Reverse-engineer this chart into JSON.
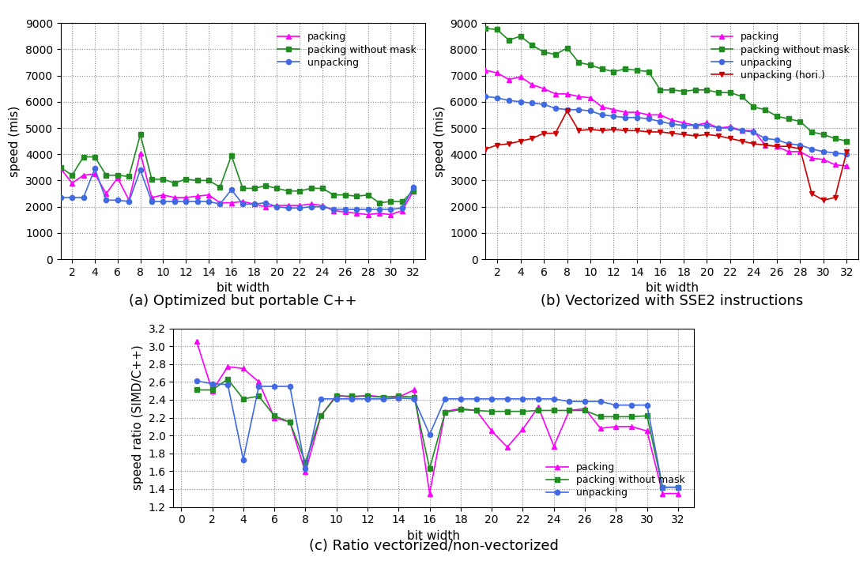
{
  "bit_widths": [
    1,
    2,
    3,
    4,
    5,
    6,
    7,
    8,
    9,
    10,
    11,
    12,
    13,
    14,
    15,
    16,
    17,
    18,
    19,
    20,
    21,
    22,
    23,
    24,
    25,
    26,
    27,
    28,
    29,
    30,
    31,
    32
  ],
  "ax1_packing": [
    3450,
    2900,
    3200,
    3250,
    2500,
    3100,
    2250,
    4050,
    2350,
    2450,
    2350,
    2350,
    2400,
    2450,
    2150,
    2150,
    2200,
    2100,
    2000,
    2050,
    2050,
    2050,
    2100,
    2050,
    1850,
    1800,
    1750,
    1700,
    1750,
    1700,
    1850,
    2600
  ],
  "ax1_packing_wm": [
    3500,
    3200,
    3900,
    3900,
    3200,
    3200,
    3150,
    4750,
    3050,
    3050,
    2900,
    3050,
    3000,
    3000,
    2750,
    3950,
    2700,
    2700,
    2800,
    2700,
    2600,
    2600,
    2700,
    2700,
    2450,
    2450,
    2400,
    2450,
    2150,
    2200,
    2200,
    2600
  ],
  "ax1_unpacking": [
    2350,
    2350,
    2350,
    3450,
    2250,
    2250,
    2200,
    3400,
    2200,
    2200,
    2200,
    2200,
    2200,
    2200,
    2100,
    2650,
    2100,
    2100,
    2150,
    2000,
    1950,
    1950,
    2000,
    2000,
    1900,
    1900,
    1900,
    1900,
    1900,
    1900,
    1950,
    2750
  ],
  "ax2_packing": [
    7200,
    7100,
    6850,
    6950,
    6650,
    6500,
    6300,
    6300,
    6200,
    6150,
    5800,
    5700,
    5600,
    5600,
    5500,
    5500,
    5300,
    5200,
    5100,
    5200,
    5000,
    5050,
    4900,
    4900,
    4350,
    4300,
    4100,
    4100,
    3850,
    3800,
    3600,
    3550
  ],
  "ax2_packing_wm": [
    8800,
    8750,
    8350,
    8500,
    8150,
    7900,
    7800,
    8050,
    7500,
    7400,
    7250,
    7150,
    7250,
    7200,
    7150,
    6450,
    6450,
    6400,
    6450,
    6450,
    6350,
    6350,
    6200,
    5800,
    5700,
    5450,
    5350,
    5250,
    4850,
    4750,
    4600,
    4500
  ],
  "ax2_unpacking": [
    6200,
    6150,
    6050,
    6000,
    5950,
    5900,
    5750,
    5700,
    5700,
    5650,
    5500,
    5450,
    5400,
    5400,
    5350,
    5250,
    5150,
    5100,
    5100,
    5100,
    5000,
    5000,
    4900,
    4850,
    4600,
    4550,
    4400,
    4350,
    4200,
    4100,
    4050,
    4000
  ],
  "ax2_unpacking_hori": [
    4200,
    4350,
    4400,
    4500,
    4600,
    4800,
    4800,
    5650,
    4900,
    4950,
    4900,
    4950,
    4900,
    4900,
    4850,
    4850,
    4800,
    4750,
    4700,
    4750,
    4700,
    4600,
    4500,
    4400,
    4350,
    4300,
    4300,
    4200,
    2500,
    2250,
    2350,
    4100
  ],
  "ax3_packing": [
    3.05,
    2.5,
    2.77,
    2.75,
    2.6,
    2.2,
    2.15,
    1.59,
    2.22,
    2.45,
    2.43,
    2.45,
    2.43,
    2.43,
    2.51,
    1.35,
    2.27,
    2.3,
    2.28,
    2.05,
    1.87,
    2.07,
    2.32,
    1.88,
    2.28,
    2.3,
    2.08,
    2.1,
    2.1,
    2.05,
    1.35,
    1.35
  ],
  "ax3_packing_wm": [
    2.51,
    2.51,
    2.63,
    2.41,
    2.44,
    2.22,
    2.15,
    1.7,
    2.22,
    2.44,
    2.44,
    2.44,
    2.43,
    2.44,
    2.43,
    1.63,
    2.26,
    2.29,
    2.28,
    2.27,
    2.27,
    2.27,
    2.28,
    2.28,
    2.28,
    2.28,
    2.21,
    2.21,
    2.21,
    2.22,
    1.42,
    1.42
  ],
  "ax3_unpacking": [
    2.61,
    2.58,
    2.57,
    1.73,
    2.55,
    2.55,
    2.55,
    1.63,
    2.41,
    2.41,
    2.41,
    2.41,
    2.41,
    2.42,
    2.41,
    2.01,
    2.41,
    2.41,
    2.41,
    2.41,
    2.41,
    2.41,
    2.41,
    2.41,
    2.38,
    2.38,
    2.38,
    2.34,
    2.34,
    2.34,
    1.42,
    1.42
  ],
  "color_packing": "#ff00ff",
  "color_packing_wm": "#228B22",
  "color_unpacking": "#4169E1",
  "color_unpacking_hori": "#CC0000",
  "caption_a": "(a) Optimized but portable C++",
  "caption_b": "(b) Vectorized with SSE2 instructions",
  "caption_c": "(c) Ratio vectorized/non-vectorized",
  "ylabel_ab": "speed (mis)",
  "ylabel_c": "speed ratio (SIMD/C++)",
  "xlabel": "bit width",
  "ylim_ab": [
    0,
    9000
  ],
  "yticks_ab": [
    0,
    1000,
    2000,
    3000,
    4000,
    5000,
    6000,
    7000,
    8000,
    9000
  ],
  "ylim_c": [
    1.2,
    3.2
  ],
  "yticks_c": [
    1.2,
    1.4,
    1.6,
    1.8,
    2.0,
    2.2,
    2.4,
    2.6,
    2.8,
    3.0,
    3.2
  ],
  "xticks_ab": [
    2,
    4,
    6,
    8,
    10,
    12,
    14,
    16,
    18,
    20,
    22,
    24,
    26,
    28,
    30,
    32
  ],
  "xticks_c": [
    0,
    2,
    4,
    6,
    8,
    10,
    12,
    14,
    16,
    18,
    20,
    22,
    24,
    26,
    28,
    30,
    32
  ],
  "xlim_ab": [
    1,
    33
  ],
  "xlim_c": [
    -0.5,
    33
  ]
}
